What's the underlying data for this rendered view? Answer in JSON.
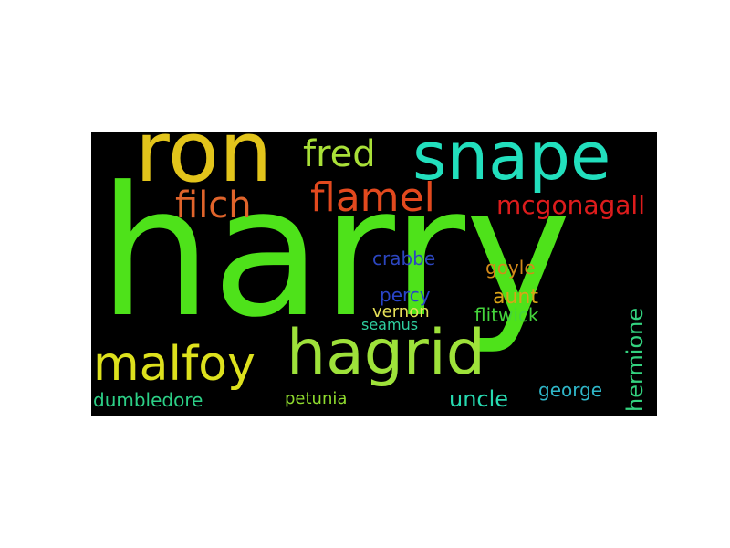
{
  "background_color": "#000000",
  "page_color": "#ffffff",
  "words": [
    {
      "key": "harry",
      "text": "harry",
      "color": "#4ee21a"
    },
    {
      "key": "ron",
      "text": "ron",
      "color": "#e2c41b"
    },
    {
      "key": "snape",
      "text": "snape",
      "color": "#22dfbd"
    },
    {
      "key": "fred",
      "text": "fred",
      "color": "#a9e038"
    },
    {
      "key": "flamel",
      "text": "flamel",
      "color": "#e2491e"
    },
    {
      "key": "filch",
      "text": "filch",
      "color": "#e0642b"
    },
    {
      "key": "mcgonagall",
      "text": "mcgonagall",
      "color": "#dd1c1c"
    },
    {
      "key": "crabbe",
      "text": "crabbe",
      "color": "#2c46c0"
    },
    {
      "key": "goyle",
      "text": "goyle",
      "color": "#d48a1a"
    },
    {
      "key": "aunt",
      "text": "aunt",
      "color": "#d9a417"
    },
    {
      "key": "percy",
      "text": "percy",
      "color": "#2a44c8"
    },
    {
      "key": "vernon",
      "text": "vernon",
      "color": "#e6e058"
    },
    {
      "key": "seamus",
      "text": "seamus",
      "color": "#2fcfa0"
    },
    {
      "key": "flitwick",
      "text": "flitwick",
      "color": "#45d43c"
    },
    {
      "key": "hermione",
      "text": "hermione",
      "color": "#33d27f"
    },
    {
      "key": "malfoy",
      "text": "malfoy",
      "color": "#dde11d"
    },
    {
      "key": "hagrid",
      "text": "hagrid",
      "color": "#9ee23a"
    },
    {
      "key": "dumbledore",
      "text": "dumbledore",
      "color": "#2ccf86"
    },
    {
      "key": "petunia",
      "text": "petunia",
      "color": "#8fdc2e"
    },
    {
      "key": "uncle",
      "text": "uncle",
      "color": "#27d9b0"
    },
    {
      "key": "george",
      "text": "george",
      "color": "#2fb6c8"
    }
  ]
}
